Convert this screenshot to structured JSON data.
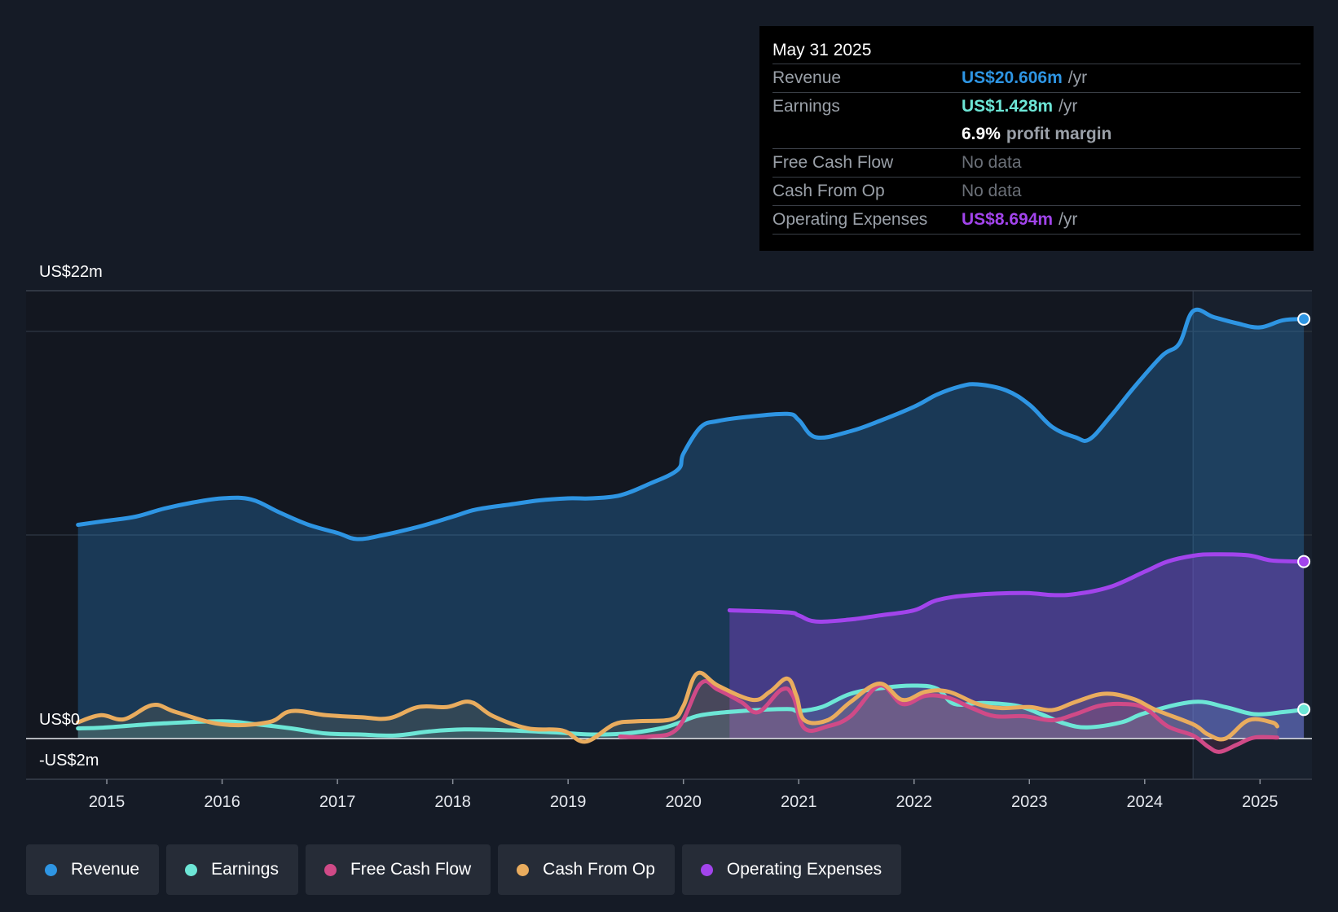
{
  "colors": {
    "revenue": "#2e95e3",
    "earnings": "#6de6d6",
    "free_cash_flow": "#d04a87",
    "cash_from_op": "#e9ac5e",
    "operating_expenses": "#a244ec"
  },
  "tooltip": {
    "date": "May 31 2025",
    "revenue_label": "Revenue",
    "revenue_value": "US$20.606m",
    "revenue_unit": "/yr",
    "earnings_label": "Earnings",
    "earnings_value": "US$1.428m",
    "earnings_unit": "/yr",
    "margin_value": "6.9%",
    "margin_label": "profit margin",
    "fcf_label": "Free Cash Flow",
    "fcf_value": "No data",
    "cfo_label": "Cash From Op",
    "cfo_value": "No data",
    "opex_label": "Operating Expenses",
    "opex_value": "US$8.694m",
    "opex_unit": "/yr"
  },
  "legend": [
    {
      "label": "Revenue",
      "color": "#2e95e3"
    },
    {
      "label": "Earnings",
      "color": "#6de6d6"
    },
    {
      "label": "Free Cash Flow",
      "color": "#d04a87"
    },
    {
      "label": "Cash From Op",
      "color": "#e9ac5e"
    },
    {
      "label": "Operating Expenses",
      "color": "#a244ec"
    }
  ],
  "chart_data": {
    "type": "area",
    "title": "",
    "ylabel_top": "US$22m",
    "ylabel_zero": "US$0",
    "ylabel_bottom": "-US$2m",
    "ylim": [
      -2,
      22
    ],
    "xlim": [
      2014.3,
      2025.45
    ],
    "x_ticks": [
      "2015",
      "2016",
      "2017",
      "2018",
      "2019",
      "2020",
      "2021",
      "2022",
      "2023",
      "2024",
      "2025"
    ],
    "gridlines": [
      20,
      10
    ],
    "forecast_start": 2024.42,
    "series": [
      {
        "name": "Revenue",
        "x": [
          2014.75,
          2015.0,
          2015.25,
          2015.5,
          2015.75,
          2016.0,
          2016.25,
          2016.5,
          2016.75,
          2017.0,
          2017.17,
          2017.4,
          2017.7,
          2018.0,
          2018.2,
          2018.5,
          2018.75,
          2019.0,
          2019.2,
          2019.45,
          2019.7,
          2019.95,
          2020.0,
          2020.15,
          2020.3,
          2020.55,
          2020.9,
          2021.0,
          2021.15,
          2021.45,
          2021.7,
          2022.0,
          2022.2,
          2022.4,
          2022.55,
          2022.8,
          2023.0,
          2023.2,
          2023.4,
          2023.52,
          2023.7,
          2023.9,
          2024.15,
          2024.3,
          2024.42,
          2024.6,
          2024.8,
          2025.0,
          2025.2,
          2025.38
        ],
        "values": [
          10.5,
          10.7,
          10.9,
          11.3,
          11.6,
          11.8,
          11.75,
          11.1,
          10.5,
          10.1,
          9.8,
          10.0,
          10.4,
          10.9,
          11.25,
          11.5,
          11.7,
          11.8,
          11.8,
          11.95,
          12.5,
          13.2,
          14.0,
          15.3,
          15.6,
          15.8,
          15.95,
          15.65,
          14.8,
          15.1,
          15.6,
          16.3,
          16.9,
          17.3,
          17.4,
          17.1,
          16.4,
          15.3,
          14.8,
          14.7,
          15.8,
          17.2,
          18.8,
          19.4,
          21.0,
          20.7,
          20.4,
          20.2,
          20.55,
          20.606
        ]
      },
      {
        "name": "Operating Expenses",
        "x": [
          2020.4,
          2020.9,
          2021.0,
          2021.15,
          2021.45,
          2021.7,
          2022.0,
          2022.2,
          2022.5,
          2022.95,
          2023.2,
          2023.4,
          2023.7,
          2024.0,
          2024.2,
          2024.42,
          2024.6,
          2024.9,
          2025.1,
          2025.38
        ],
        "values": [
          6.3,
          6.2,
          6.05,
          5.75,
          5.85,
          6.05,
          6.3,
          6.8,
          7.05,
          7.15,
          7.05,
          7.1,
          7.45,
          8.2,
          8.7,
          8.98,
          9.05,
          9.0,
          8.75,
          8.694
        ]
      },
      {
        "name": "Earnings",
        "x": [
          2014.75,
          2015.0,
          2015.5,
          2016.0,
          2016.3,
          2016.6,
          2016.9,
          2017.2,
          2017.5,
          2017.8,
          2018.1,
          2018.5,
          2018.9,
          2019.2,
          2019.5,
          2019.8,
          2019.95,
          2020.15,
          2020.5,
          2020.9,
          2021.0,
          2021.2,
          2021.45,
          2021.75,
          2022.0,
          2022.2,
          2022.35,
          2022.6,
          2022.9,
          2023.1,
          2023.3,
          2023.5,
          2023.8,
          2024.0,
          2024.42,
          2024.7,
          2024.95,
          2025.2,
          2025.38
        ],
        "values": [
          0.5,
          0.55,
          0.75,
          0.85,
          0.7,
          0.5,
          0.25,
          0.2,
          0.15,
          0.35,
          0.45,
          0.4,
          0.3,
          0.2,
          0.25,
          0.5,
          0.75,
          1.15,
          1.35,
          1.45,
          1.35,
          1.55,
          2.2,
          2.5,
          2.6,
          2.45,
          1.7,
          1.75,
          1.6,
          1.2,
          0.75,
          0.55,
          0.8,
          1.25,
          1.8,
          1.55,
          1.2,
          1.3,
          1.428
        ]
      },
      {
        "name": "Free Cash Flow",
        "x": [
          2019.45,
          2019.7,
          2019.95,
          2020.15,
          2020.3,
          2020.5,
          2020.65,
          2020.85,
          2020.95,
          2021.05,
          2021.25,
          2021.45,
          2021.7,
          2021.9,
          2022.1,
          2022.3,
          2022.5,
          2022.7,
          2022.95,
          2023.2,
          2023.4,
          2023.6,
          2023.8,
          2024.0,
          2024.2,
          2024.42,
          2024.55,
          2024.65,
          2024.8,
          2024.95,
          2025.15
        ],
        "values": [
          0.1,
          0.1,
          0.5,
          2.7,
          2.4,
          1.8,
          1.3,
          2.4,
          2.1,
          0.5,
          0.6,
          1.1,
          2.6,
          1.7,
          2.1,
          2.0,
          1.5,
          1.1,
          1.1,
          0.9,
          1.2,
          1.6,
          1.7,
          1.5,
          0.6,
          0.15,
          -0.4,
          -0.65,
          -0.3,
          0.05,
          0.05
        ]
      },
      {
        "name": "Cash From Op",
        "x": [
          2014.75,
          2014.95,
          2015.15,
          2015.4,
          2015.6,
          2016.0,
          2016.4,
          2016.6,
          2016.9,
          2017.2,
          2017.45,
          2017.7,
          2017.95,
          2018.15,
          2018.35,
          2018.65,
          2018.95,
          2019.15,
          2019.4,
          2019.6,
          2019.9,
          2020.0,
          2020.12,
          2020.3,
          2020.6,
          2020.75,
          2020.9,
          2020.98,
          2021.05,
          2021.25,
          2021.45,
          2021.7,
          2021.9,
          2022.1,
          2022.3,
          2022.55,
          2022.75,
          2023.0,
          2023.2,
          2023.4,
          2023.65,
          2023.9,
          2024.1,
          2024.42,
          2024.55,
          2024.7,
          2024.9,
          2025.1,
          2025.15
        ],
        "values": [
          0.8,
          1.15,
          0.95,
          1.65,
          1.3,
          0.7,
          0.8,
          1.35,
          1.15,
          1.05,
          1.0,
          1.55,
          1.55,
          1.8,
          1.1,
          0.5,
          0.4,
          -0.15,
          0.7,
          0.85,
          0.95,
          1.6,
          3.2,
          2.6,
          1.9,
          2.3,
          2.95,
          2.1,
          0.9,
          0.9,
          1.8,
          2.7,
          1.9,
          2.3,
          2.3,
          1.7,
          1.5,
          1.55,
          1.4,
          1.8,
          2.2,
          1.95,
          1.4,
          0.7,
          0.2,
          0.0,
          0.9,
          0.8,
          0.6
        ]
      }
    ],
    "end_markers": [
      {
        "series": "Revenue",
        "x": 2025.38,
        "value": 20.606
      },
      {
        "series": "Operating Expenses",
        "x": 2025.38,
        "value": 8.694
      },
      {
        "series": "Earnings",
        "x": 2025.38,
        "value": 1.428
      }
    ]
  }
}
